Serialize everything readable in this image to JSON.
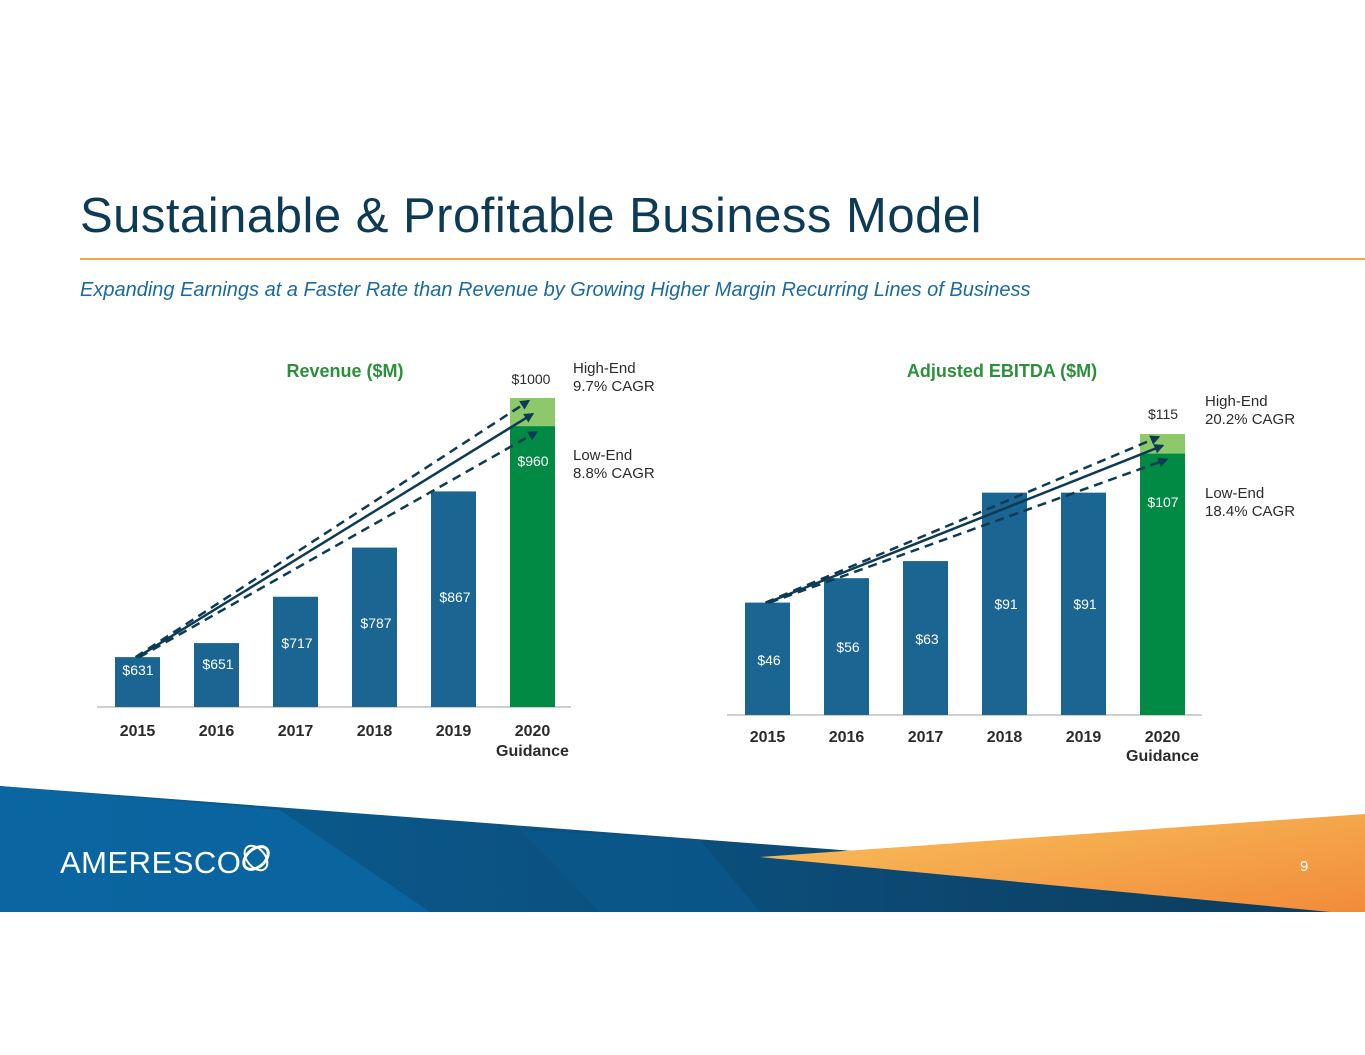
{
  "slide": {
    "title": "Sustainable & Profitable Business Model",
    "subtitle": "Expanding Earnings at a Faster Rate than Revenue by Growing Higher Margin Recurring Lines of Business",
    "page_number": "9",
    "logo_text": "AMERESCO"
  },
  "colors": {
    "title": "#0d3b55",
    "accent_rule": "#f3a745",
    "subtitle": "#1a6aa0",
    "bar": "#1a6592",
    "guidance_low": "#008a43",
    "guidance_high": "#8dc96a",
    "chart_title": "#2e8f3b",
    "trend_line": "#0d3b55"
  },
  "chart_data": [
    {
      "type": "bar",
      "title": "Revenue ($M)",
      "categories": [
        "2015",
        "2016",
        "2017",
        "2018",
        "2019",
        "2020 Guidance"
      ],
      "values": [
        631,
        651,
        717,
        787,
        867,
        960
      ],
      "value_labels": [
        "$631",
        "$651",
        "$717",
        "$787",
        "$867",
        "$960"
      ],
      "guidance_high": 1000,
      "guidance_high_label": "$1000",
      "high_end": {
        "label": "High-End",
        "cagr": "9.7% CAGR"
      },
      "low_end": {
        "label": "Low-End",
        "cagr": "8.8% CAGR"
      },
      "ylim": [
        540,
        1010
      ]
    },
    {
      "type": "bar",
      "title": "Adjusted EBITDA ($M)",
      "categories": [
        "2015",
        "2016",
        "2017",
        "2018",
        "2019",
        "2020 Guidance"
      ],
      "values": [
        46,
        56,
        63,
        91,
        91,
        107
      ],
      "value_labels": [
        "$46",
        "$56",
        "$63",
        "$91",
        "$91",
        "$107"
      ],
      "guidance_high": 115,
      "guidance_high_label": "$115",
      "high_end": {
        "label": "High-End",
        "cagr": "20.2% CAGR"
      },
      "low_end": {
        "label": "Low-End",
        "cagr": "18.4% CAGR"
      },
      "ylim": [
        0,
        125
      ]
    }
  ]
}
